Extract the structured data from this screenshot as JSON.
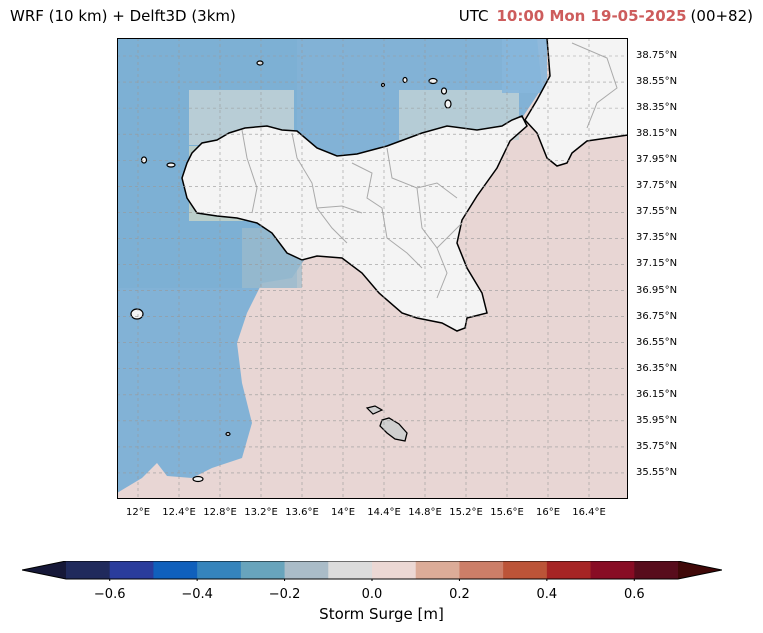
{
  "title": {
    "left": "WRF (10 km) + Delft3D (3km)",
    "utc_label": "UTC",
    "timestamp": "10:00 Mon 19-05-2025",
    "run_offset": "(00+82)"
  },
  "map": {
    "lat_labels": [
      "38.75°N",
      "38.55°N",
      "38.35°N",
      "38.15°N",
      "37.95°N",
      "37.75°N",
      "37.55°N",
      "37.35°N",
      "37.15°N",
      "36.95°N",
      "36.75°N",
      "36.55°N",
      "36.35°N",
      "36.15°N",
      "35.95°N",
      "35.75°N",
      "35.55°N"
    ],
    "lon_labels": [
      "12°E",
      "12.4°E",
      "12.8°E",
      "13.2°E",
      "13.6°E",
      "14°E",
      "14.4°E",
      "14.8°E",
      "15.2°E",
      "15.6°E",
      "16°E",
      "16.4°E"
    ],
    "colors": {
      "land": "#f4f4f4",
      "coast": "#000000",
      "borders": "#aaaaaa",
      "grid": "#999999"
    }
  },
  "colorbar": {
    "label": "Storm Surge [m]",
    "ticks": [
      "−0.6",
      "−0.4",
      "−0.2",
      "0.0",
      "0.2",
      "0.4",
      "0.6"
    ],
    "colors": [
      "#202a5c",
      "#2a3c9c",
      "#1060bc",
      "#3584bc",
      "#68a4bc",
      "#aabcc8",
      "#dcdcdc",
      "#ecd8d4",
      "#dcac98",
      "#cc7e68",
      "#bc5438",
      "#a62424",
      "#880c24",
      "#580c1c"
    ],
    "extend_low_color": "#161838",
    "extend_high_color": "#400808"
  }
}
